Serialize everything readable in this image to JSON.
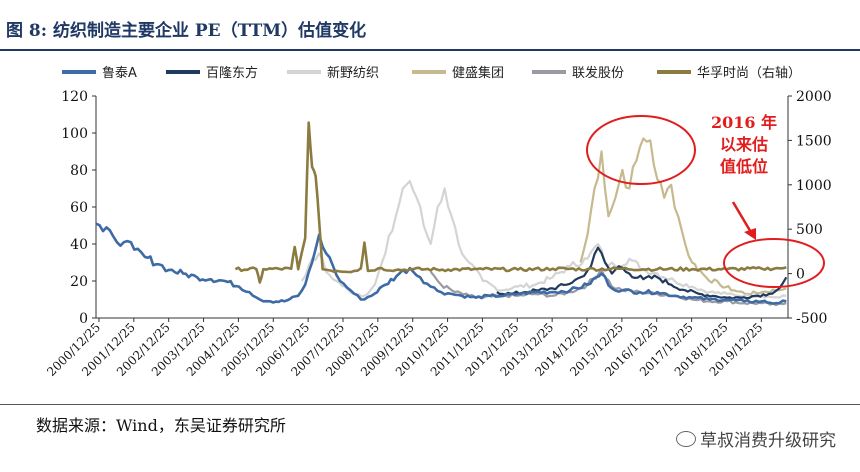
{
  "title": "图 8:  纺织制造主要企业 PE（TTM）估值变化",
  "source": "数据来源：Wind，东吴证券研究所",
  "watermark": "草叔消费升级研究",
  "annotation": {
    "lines": [
      "2016 年",
      "以来估",
      "值低位"
    ],
    "color": "#e11d1d"
  },
  "chart_data": {
    "type": "line",
    "title": "纺织制造主要企业 PE（TTM）估值变化",
    "left_axis": {
      "ticks": [
        0,
        20,
        40,
        60,
        80,
        100,
        120
      ],
      "range": [
        0,
        120
      ]
    },
    "right_axis": {
      "ticks": [
        -500,
        0,
        500,
        1000,
        1500,
        2000
      ],
      "range": [
        -500,
        2000
      ]
    },
    "x_ticks": [
      "2000/12/25",
      "2001/12/25",
      "2002/12/25",
      "2003/12/25",
      "2004/12/25",
      "2005/12/25",
      "2006/12/25",
      "2007/12/25",
      "2008/12/25",
      "2009/12/25",
      "2010/12/25",
      "2011/12/25",
      "2012/12/25",
      "2013/12/25",
      "2014/12/25",
      "2015/12/25",
      "2016/12/25",
      "2017/12/25",
      "2018/12/25",
      "2019/12/25"
    ],
    "x_range": [
      2000.9,
      2020.75
    ],
    "legend_position": "top",
    "series": [
      {
        "name": "鲁泰A",
        "color": "#3e6aa6",
        "axis": "left",
        "width": 2.6,
        "points": [
          [
            2000.9,
            51
          ],
          [
            2001.1,
            47
          ],
          [
            2001.4,
            44
          ],
          [
            2001.7,
            41
          ],
          [
            2002.0,
            37
          ],
          [
            2002.3,
            33
          ],
          [
            2002.7,
            29
          ],
          [
            2003.0,
            26
          ],
          [
            2003.4,
            24
          ],
          [
            2003.8,
            22
          ],
          [
            2004.2,
            21
          ],
          [
            2004.6,
            20
          ],
          [
            2005.0,
            17
          ],
          [
            2005.3,
            14
          ],
          [
            2005.6,
            10
          ],
          [
            2005.9,
            9
          ],
          [
            2006.3,
            9
          ],
          [
            2006.7,
            12
          ],
          [
            2006.9,
            18
          ],
          [
            2007.1,
            30
          ],
          [
            2007.3,
            45
          ],
          [
            2007.5,
            35
          ],
          [
            2007.7,
            28
          ],
          [
            2007.9,
            20
          ],
          [
            2008.2,
            15
          ],
          [
            2008.5,
            10
          ],
          [
            2008.8,
            12
          ],
          [
            2009.2,
            18
          ],
          [
            2009.6,
            24
          ],
          [
            2009.9,
            27
          ],
          [
            2010.2,
            22
          ],
          [
            2010.5,
            17
          ],
          [
            2010.8,
            14
          ],
          [
            2011.1,
            13
          ],
          [
            2011.4,
            12
          ],
          [
            2011.8,
            11
          ],
          [
            2012.2,
            12
          ],
          [
            2012.6,
            12
          ],
          [
            2013.0,
            13
          ],
          [
            2013.5,
            14
          ],
          [
            2014.0,
            14
          ],
          [
            2014.5,
            15
          ],
          [
            2015.0,
            18
          ],
          [
            2015.4,
            24
          ],
          [
            2015.7,
            16
          ],
          [
            2016.0,
            15
          ],
          [
            2016.5,
            14
          ],
          [
            2017.0,
            14
          ],
          [
            2017.5,
            12
          ],
          [
            2018.0,
            11
          ],
          [
            2018.5,
            10
          ],
          [
            2019.0,
            10
          ],
          [
            2019.5,
            9
          ],
          [
            2020.0,
            9
          ],
          [
            2020.4,
            8
          ],
          [
            2020.7,
            9
          ]
        ]
      },
      {
        "name": "百隆东方",
        "color": "#1f3a5c",
        "axis": "left",
        "width": 2.2,
        "points": [
          [
            2012.4,
            14
          ],
          [
            2012.8,
            13
          ],
          [
            2013.2,
            14
          ],
          [
            2013.6,
            15
          ],
          [
            2014.0,
            16
          ],
          [
            2014.4,
            18
          ],
          [
            2014.8,
            22
          ],
          [
            2015.1,
            28
          ],
          [
            2015.3,
            38
          ],
          [
            2015.5,
            30
          ],
          [
            2015.7,
            24
          ],
          [
            2015.9,
            28
          ],
          [
            2016.2,
            24
          ],
          [
            2016.6,
            21
          ],
          [
            2017.0,
            22
          ],
          [
            2017.4,
            18
          ],
          [
            2017.8,
            15
          ],
          [
            2018.2,
            13
          ],
          [
            2018.6,
            12
          ],
          [
            2019.0,
            11
          ],
          [
            2019.4,
            11
          ],
          [
            2019.8,
            12
          ],
          [
            2020.2,
            13
          ],
          [
            2020.5,
            16
          ],
          [
            2020.7,
            22
          ]
        ]
      },
      {
        "name": "新野纺织",
        "color": "#d4d4d4",
        "axis": "left",
        "width": 2.2,
        "points": [
          [
            2006.8,
            20
          ],
          [
            2007.0,
            28
          ],
          [
            2007.3,
            35
          ],
          [
            2007.5,
            25
          ],
          [
            2007.8,
            20
          ],
          [
            2008.2,
            14
          ],
          [
            2008.6,
            12
          ],
          [
            2008.9,
            18
          ],
          [
            2009.2,
            35
          ],
          [
            2009.5,
            55
          ],
          [
            2009.7,
            70
          ],
          [
            2009.9,
            74
          ],
          [
            2010.1,
            65
          ],
          [
            2010.3,
            50
          ],
          [
            2010.5,
            40
          ],
          [
            2010.7,
            60
          ],
          [
            2010.9,
            70
          ],
          [
            2011.1,
            55
          ],
          [
            2011.3,
            40
          ],
          [
            2011.6,
            30
          ],
          [
            2012.0,
            20
          ],
          [
            2012.5,
            15
          ],
          [
            2013.0,
            17
          ],
          [
            2013.5,
            18
          ],
          [
            2014.0,
            22
          ],
          [
            2014.5,
            28
          ],
          [
            2015.0,
            32
          ],
          [
            2015.3,
            40
          ],
          [
            2015.5,
            30
          ],
          [
            2015.8,
            28
          ],
          [
            2016.2,
            32
          ],
          [
            2016.6,
            26
          ],
          [
            2017.0,
            24
          ],
          [
            2017.5,
            20
          ],
          [
            2018.0,
            17
          ],
          [
            2018.5,
            14
          ],
          [
            2019.0,
            13
          ],
          [
            2019.5,
            12
          ],
          [
            2020.0,
            12
          ],
          [
            2020.5,
            11
          ],
          [
            2020.7,
            12
          ]
        ]
      },
      {
        "name": "健盛集团",
        "color": "#c7b98e",
        "axis": "left",
        "width": 2.2,
        "points": [
          [
            2014.8,
            30
          ],
          [
            2015.0,
            45
          ],
          [
            2015.2,
            70
          ],
          [
            2015.4,
            90
          ],
          [
            2015.6,
            55
          ],
          [
            2015.8,
            65
          ],
          [
            2016.0,
            80
          ],
          [
            2016.2,
            70
          ],
          [
            2016.4,
            85
          ],
          [
            2016.6,
            97
          ],
          [
            2016.8,
            96
          ],
          [
            2017.0,
            75
          ],
          [
            2017.2,
            65
          ],
          [
            2017.4,
            72
          ],
          [
            2017.6,
            55
          ],
          [
            2017.8,
            40
          ],
          [
            2018.0,
            30
          ],
          [
            2018.4,
            22
          ],
          [
            2018.8,
            18
          ],
          [
            2019.2,
            15
          ],
          [
            2019.6,
            13
          ],
          [
            2020.0,
            14
          ],
          [
            2020.4,
            15
          ],
          [
            2020.7,
            16
          ]
        ]
      },
      {
        "name": "联发股份",
        "color": "#9a9ba0",
        "axis": "left",
        "width": 2.2,
        "points": [
          [
            2010.5,
            25
          ],
          [
            2010.8,
            18
          ],
          [
            2011.2,
            14
          ],
          [
            2011.6,
            12
          ],
          [
            2012.0,
            11
          ],
          [
            2012.5,
            12
          ],
          [
            2013.0,
            12
          ],
          [
            2013.5,
            13
          ],
          [
            2014.0,
            12
          ],
          [
            2014.5,
            14
          ],
          [
            2015.0,
            18
          ],
          [
            2015.4,
            26
          ],
          [
            2015.7,
            17
          ],
          [
            2016.0,
            15
          ],
          [
            2016.5,
            14
          ],
          [
            2017.0,
            13
          ],
          [
            2017.5,
            12
          ],
          [
            2018.0,
            10
          ],
          [
            2018.5,
            9
          ],
          [
            2019.0,
            9
          ],
          [
            2019.5,
            8
          ],
          [
            2020.0,
            8
          ],
          [
            2020.4,
            7
          ],
          [
            2020.7,
            8
          ]
        ]
      },
      {
        "name": "华孚时尚（右轴）",
        "color": "#8c7b40",
        "axis": "right",
        "width": 2.6,
        "points": [
          [
            2004.9,
            50
          ],
          [
            2005.5,
            50
          ],
          [
            2005.6,
            -100
          ],
          [
            2005.7,
            50
          ],
          [
            2006.5,
            55
          ],
          [
            2006.6,
            300
          ],
          [
            2006.7,
            50
          ],
          [
            2006.9,
            400
          ],
          [
            2007.0,
            1700
          ],
          [
            2007.1,
            1200
          ],
          [
            2007.2,
            1100
          ],
          [
            2007.3,
            600
          ],
          [
            2007.4,
            50
          ],
          [
            2007.8,
            30
          ],
          [
            2008.3,
            30
          ],
          [
            2008.5,
            60
          ],
          [
            2008.6,
            350
          ],
          [
            2008.7,
            30
          ],
          [
            2009.0,
            60
          ],
          [
            2009.5,
            40
          ],
          [
            2010.0,
            50
          ],
          [
            2011.0,
            45
          ],
          [
            2012.0,
            50
          ],
          [
            2013.0,
            45
          ],
          [
            2014.0,
            55
          ],
          [
            2015.0,
            50
          ],
          [
            2016.0,
            55
          ],
          [
            2017.0,
            50
          ],
          [
            2018.0,
            50
          ],
          [
            2019.0,
            50
          ],
          [
            2020.0,
            55
          ],
          [
            2020.5,
            60
          ],
          [
            2020.7,
            70
          ]
        ]
      }
    ]
  }
}
